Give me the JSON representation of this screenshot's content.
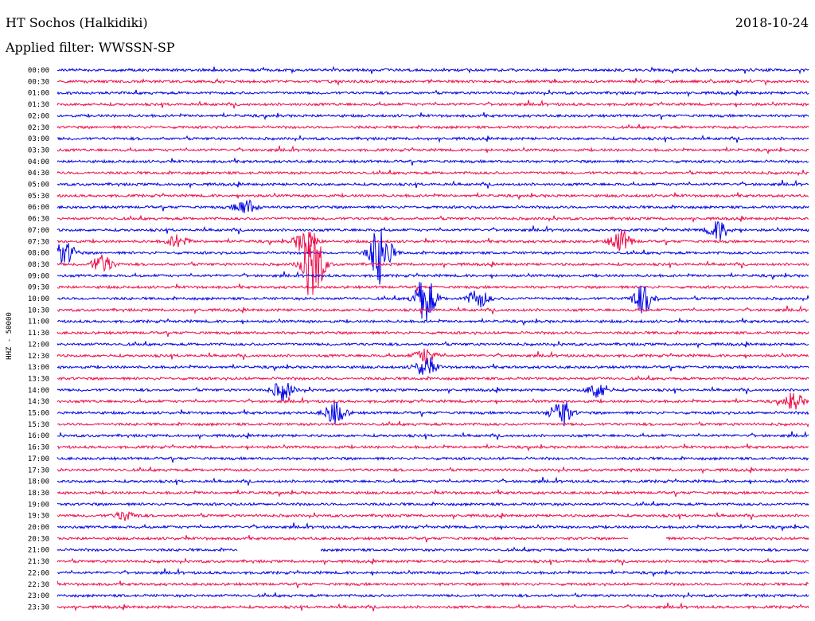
{
  "header": {
    "station": "HT Sochos (Halkidiki)",
    "date": "2018-10-24",
    "filter": "Applied filter: WWSSN-SP"
  },
  "chart_data": {
    "type": "line",
    "title": "HT Sochos (Halkidiki)",
    "ylabel": "HHZ - 50000",
    "xlabel": "",
    "row_labels": [
      "00:00",
      "00:30",
      "01:00",
      "01:30",
      "02:00",
      "02:30",
      "03:00",
      "03:30",
      "04:00",
      "04:30",
      "05:00",
      "05:30",
      "06:00",
      "06:30",
      "07:00",
      "07:30",
      "08:00",
      "08:30",
      "09:00",
      "09:30",
      "10:00",
      "10:30",
      "11:00",
      "11:30",
      "12:00",
      "12:30",
      "13:00",
      "13:30",
      "14:00",
      "14:30",
      "15:00",
      "15:30",
      "16:00",
      "16:30",
      "17:00",
      "17:30",
      "18:00",
      "18:30",
      "19:00",
      "19:30",
      "20:00",
      "20:30",
      "21:00",
      "21:30",
      "22:00",
      "22:30",
      "23:00",
      "23:30"
    ],
    "colors": [
      "#0000e6",
      "#ee0b4a"
    ],
    "grid": false,
    "events": [
      {
        "row": "06:00",
        "pos": 0.25,
        "amp": 10
      },
      {
        "row": "07:00",
        "pos": 0.88,
        "amp": 12
      },
      {
        "row": "07:30",
        "pos": 0.16,
        "amp": 8
      },
      {
        "row": "07:30",
        "pos": 0.33,
        "amp": 16
      },
      {
        "row": "07:30",
        "pos": 0.75,
        "amp": 14
      },
      {
        "row": "08:00",
        "pos": 0.01,
        "amp": 14
      },
      {
        "row": "08:00",
        "pos": 0.43,
        "amp": 40
      },
      {
        "row": "08:30",
        "pos": 0.06,
        "amp": 12
      },
      {
        "row": "08:30",
        "pos": 0.34,
        "amp": 50
      },
      {
        "row": "10:00",
        "pos": 0.49,
        "amp": 30
      },
      {
        "row": "10:00",
        "pos": 0.56,
        "amp": 12
      },
      {
        "row": "10:00",
        "pos": 0.78,
        "amp": 18
      },
      {
        "row": "12:30",
        "pos": 0.49,
        "amp": 10
      },
      {
        "row": "13:00",
        "pos": 0.49,
        "amp": 12
      },
      {
        "row": "14:00",
        "pos": 0.3,
        "amp": 12
      },
      {
        "row": "14:00",
        "pos": 0.72,
        "amp": 10
      },
      {
        "row": "14:30",
        "pos": 0.98,
        "amp": 10
      },
      {
        "row": "15:00",
        "pos": 0.37,
        "amp": 14
      },
      {
        "row": "15:00",
        "pos": 0.67,
        "amp": 18
      },
      {
        "row": "19:30",
        "pos": 0.09,
        "amp": 6
      }
    ],
    "gaps": [
      {
        "row": "21:00",
        "start": 0.24,
        "end": 0.35
      },
      {
        "row": "20:30",
        "start": 0.76,
        "end": 0.81
      }
    ]
  }
}
